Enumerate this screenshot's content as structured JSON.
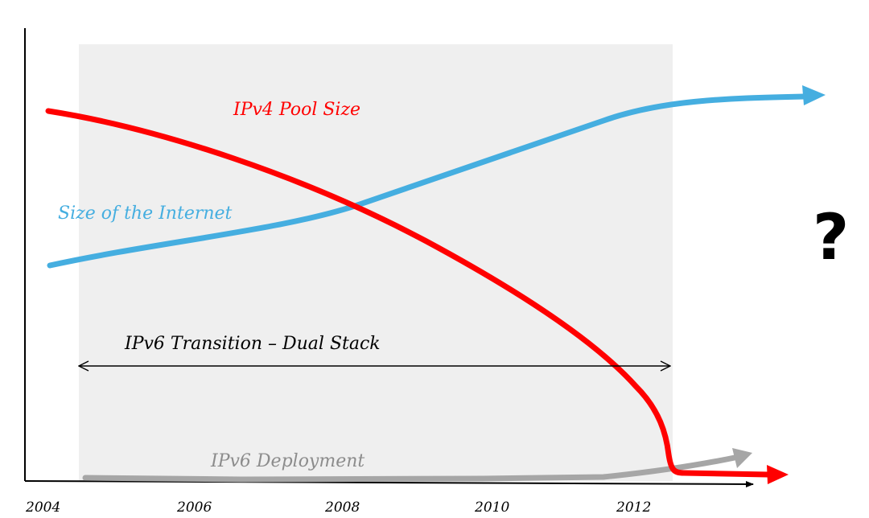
{
  "labels": {
    "ipv4_pool": "IPv4 Pool Size",
    "internet_size": "Size of the Internet",
    "dual_stack": "IPv6 Transition – Dual Stack",
    "ipv6_deployment": "IPv6 Deployment",
    "unknown": "?"
  },
  "x_axis": {
    "ticks": [
      "2004",
      "2006",
      "2008",
      "2010",
      "2012"
    ]
  },
  "colors": {
    "ipv4_pool": "#ff0000",
    "internet_size": "#45aee0",
    "ipv6_deployment": "#a6a6a6",
    "transition_band": "#efefef",
    "axis": "#000000"
  }
}
